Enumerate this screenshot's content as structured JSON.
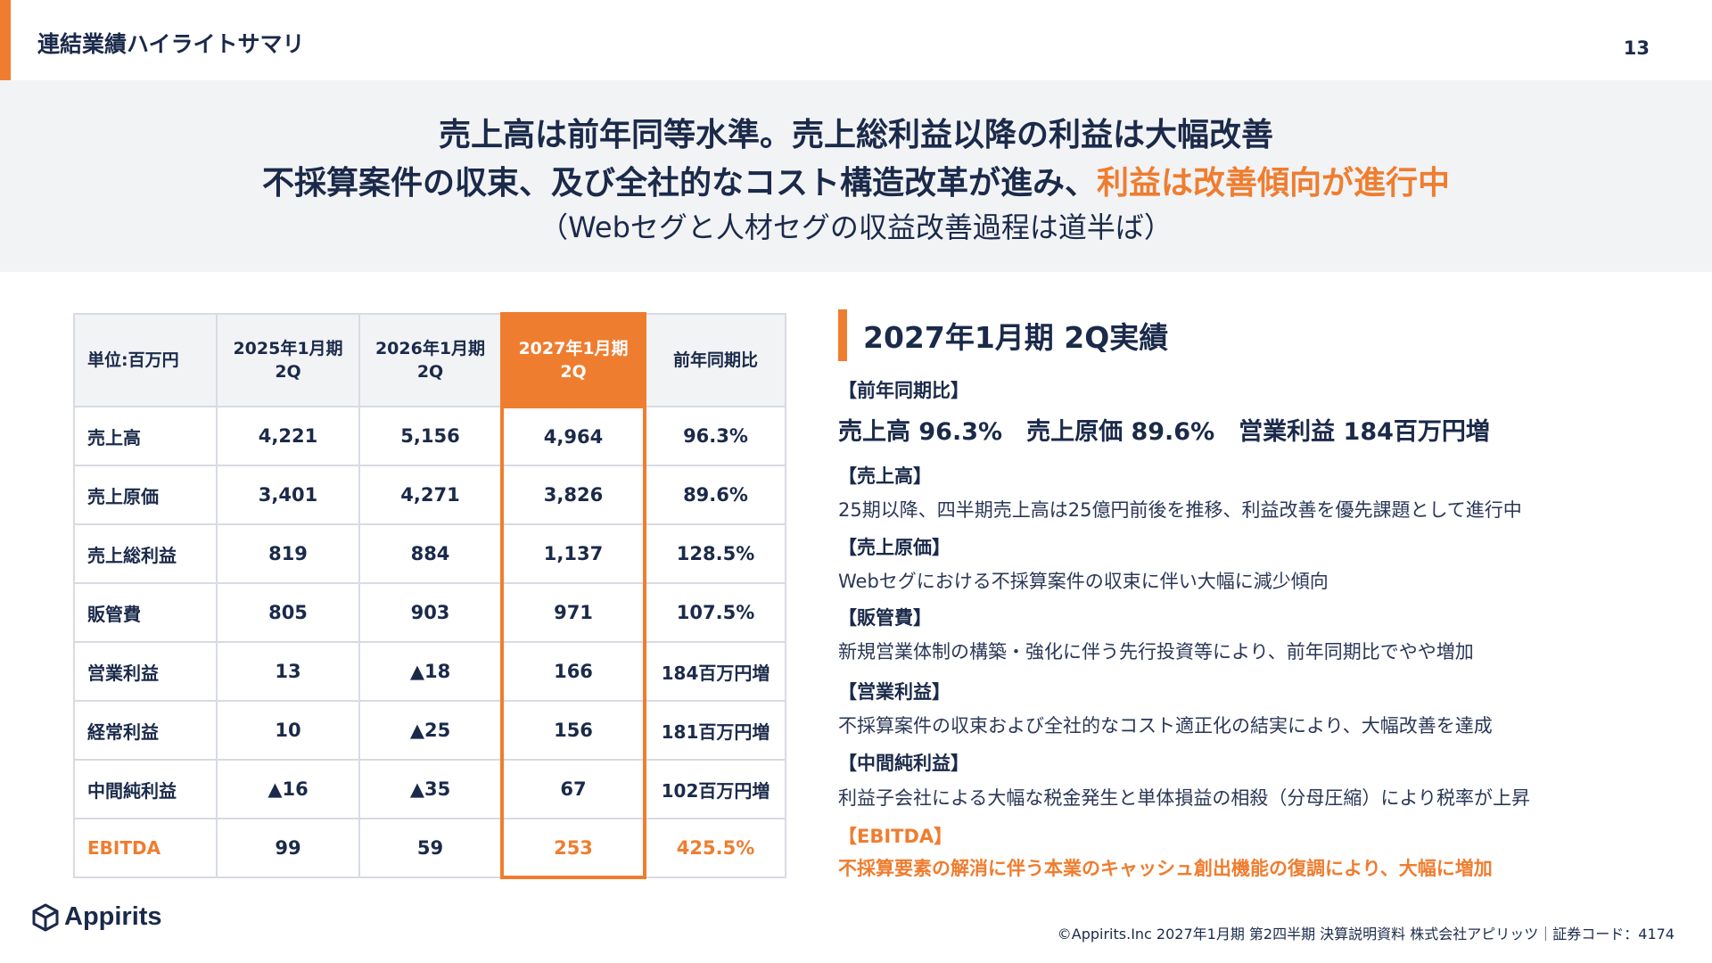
{
  "header": {
    "section_title": "連結業績ハイライトサマリ",
    "page_number": "13"
  },
  "hero": {
    "line1": "売上高は前年同等水準。売上総利益以降の利益は大幅改善",
    "line2_main": "不採算案件の収束、及び全社的なコスト構造改革が進み、",
    "line2_highlight": "利益は改善傾向が進行中",
    "line3": "（Webセグと人材セグの収益改善過程は道半ば）"
  },
  "table": {
    "unit_label": "単位:百万円",
    "columns": [
      {
        "line1": "2025年1月期",
        "line2": "2Q"
      },
      {
        "line1": "2026年1月期",
        "line2": "2Q"
      },
      {
        "line1": "2027年1月期",
        "line2": "2Q"
      }
    ],
    "yoy_header": "前年同期比",
    "rows": [
      {
        "label": "売上高",
        "v2025": "4,221",
        "v2026": "5,156",
        "v2027": "4,964",
        "yoy": "96.3%"
      },
      {
        "label": "売上原価",
        "v2025": "3,401",
        "v2026": "4,271",
        "v2027": "3,826",
        "yoy": "89.6%"
      },
      {
        "label": "売上総利益",
        "v2025": "819",
        "v2026": "884",
        "v2027": "1,137",
        "yoy": "128.5%"
      },
      {
        "label": "販管費",
        "v2025": "805",
        "v2026": "903",
        "v2027": "971",
        "yoy": "107.5%"
      },
      {
        "label": "営業利益",
        "v2025": "13",
        "v2026": "▲18",
        "v2027": "166",
        "yoy": "184百万円増"
      },
      {
        "label": "経常利益",
        "v2025": "10",
        "v2026": "▲25",
        "v2027": "156",
        "yoy": "181百万円増"
      },
      {
        "label": "中間純利益",
        "v2025": "▲16",
        "v2026": "▲35",
        "v2027": "67",
        "yoy": "102百万円増"
      },
      {
        "label": "EBITDA",
        "v2025": "99",
        "v2026": "59",
        "v2027": "253",
        "yoy": "425.5%"
      }
    ]
  },
  "results": {
    "title": "2027年1月期 2Q実績",
    "yoy_heading": "【前年同期比】",
    "yoy_summary": "売上高 96.3%　売上原価 89.6%　営業利益 184百万円増",
    "sections": [
      {
        "heading": "【売上高】",
        "text": "25期以降、四半期売上高は25億円前後を推移、利益改善を優先課題として進行中"
      },
      {
        "heading": "【売上原価】",
        "text": "Webセグにおける不採算案件の収束に伴い大幅に減少傾向"
      },
      {
        "heading": "【販管費】",
        "text": "新規営業体制の構築・強化に伴う先行投資等により、前年同期比でやや増加"
      },
      {
        "heading": "【営業利益】",
        "text": "不採算案件の収束および全社的なコスト適正化の結実により、大幅改善を達成"
      },
      {
        "heading": "【中間純利益】",
        "text": "利益子会社による大幅な税金発生と単体損益の相殺（分母圧縮）により税率が上昇"
      },
      {
        "heading": "【EBITDA】",
        "text": "不採算要素の解消に伴う本業のキャッシュ創出機能の復調により、大幅に増加"
      }
    ]
  },
  "footer": {
    "logo_text": "Appirits",
    "copyright": "©Appirits.Inc 2027年1月期 第2四半期 決算説明資料 株式会社アピリッツ｜証券コード：4174"
  },
  "colors": {
    "accent": "#ef7d2f",
    "navy": "#1b2a4a",
    "panel_bg": "#f2f3f5"
  }
}
